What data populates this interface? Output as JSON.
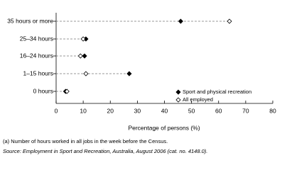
{
  "chart_data": {
    "type": "dot",
    "categories": [
      "35 hours or more",
      "25–34 hours",
      "16–24 hours",
      "1–15 hours",
      "0 hours"
    ],
    "series": [
      {
        "name": "Sport and physical recreation",
        "color": "#000000",
        "marker": "filled",
        "values": [
          46,
          11,
          10.5,
          27,
          3.5
        ]
      },
      {
        "name": "All employed",
        "color": "#000000",
        "marker": "hollow",
        "values": [
          64,
          10,
          9,
          11,
          4
        ]
      }
    ],
    "x_label": "Percentage of persons (%)",
    "xlim": [
      0,
      80
    ],
    "xticks": [
      0,
      10,
      20,
      30,
      40,
      50,
      60,
      70,
      80
    ],
    "notes": [
      "(a) Number of hours worked in all jobs in the week before the Census.",
      "Source: Employment in Sport and Recreation, Australia, August 2006 (cat. no. 4148.0)."
    ]
  }
}
